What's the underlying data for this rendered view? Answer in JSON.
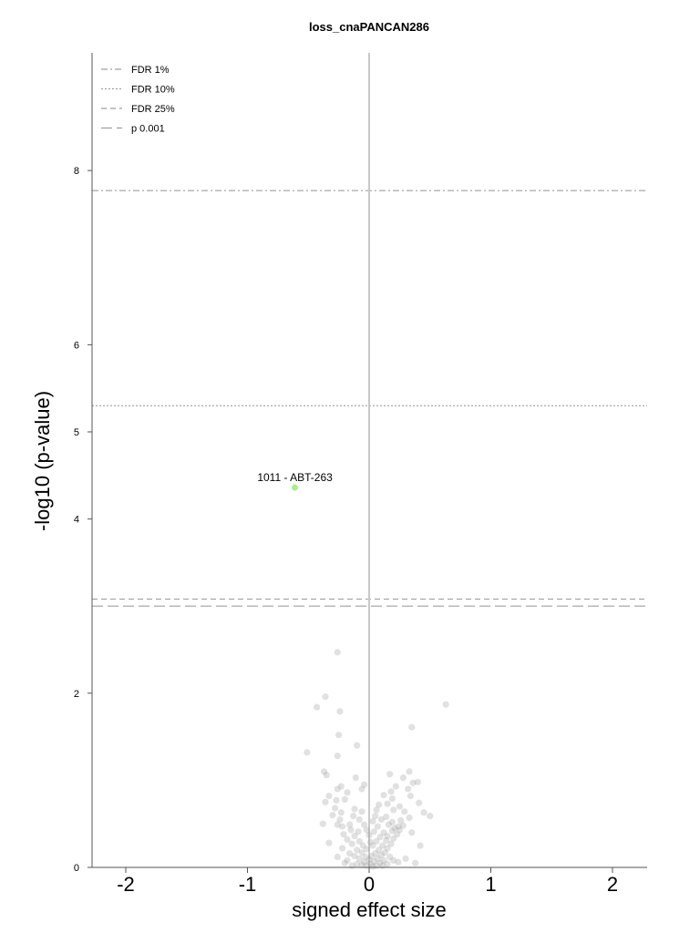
{
  "chart_data": {
    "type": "scatter",
    "title": "loss_cnaPANCAN286",
    "xlabel": "signed effect size",
    "ylabel": "-log10 (p-value)",
    "xlim": [
      -2.25,
      2.25
    ],
    "ylim": [
      0,
      9.35
    ],
    "xticks": [
      {
        "value": -2,
        "label": "-2"
      },
      {
        "value": -1,
        "label": "-1"
      },
      {
        "value": 0,
        "label": "0"
      },
      {
        "value": 1,
        "label": "1"
      },
      {
        "value": 2,
        "label": "2"
      }
    ],
    "yticks": [
      {
        "value": 0,
        "label": "0"
      },
      {
        "value": 2,
        "label": "2"
      },
      {
        "value": 4,
        "label": "4"
      },
      {
        "value": 5,
        "label": "5"
      },
      {
        "value": 6,
        "label": "6"
      },
      {
        "value": 8,
        "label": "8"
      }
    ],
    "thresholds": [
      {
        "name": "FDR 1%",
        "y": 7.77,
        "dash": "7,3,2,3"
      },
      {
        "name": "FDR 10%",
        "y": 5.3,
        "dash": "2,2"
      },
      {
        "name": "FDR 25%",
        "y": 3.08,
        "dash": "6,4"
      },
      {
        "name": "p 0.001",
        "y": 3.0,
        "dash": "12,5"
      }
    ],
    "legend_position": "top-left",
    "highlight": {
      "x": -0.61,
      "y": 4.36,
      "label": "1011 - ABT-263",
      "color": "#a6f08a"
    },
    "points": [
      [
        -0.26,
        2.47
      ],
      [
        -0.36,
        1.96
      ],
      [
        -0.43,
        1.84
      ],
      [
        -0.24,
        1.79
      ],
      [
        0.63,
        1.87
      ],
      [
        0.35,
        1.61
      ],
      [
        -0.25,
        1.52
      ],
      [
        -0.1,
        1.4
      ],
      [
        -0.51,
        1.32
      ],
      [
        -0.26,
        1.28
      ],
      [
        -0.37,
        1.1
      ],
      [
        -0.35,
        1.06
      ],
      [
        -0.11,
        1.03
      ],
      [
        0.17,
        1.07
      ],
      [
        0.33,
        1.1
      ],
      [
        0.28,
        1.03
      ],
      [
        0.36,
        0.97
      ],
      [
        0.4,
        0.98
      ],
      [
        0.22,
        0.93
      ],
      [
        0.32,
        0.9
      ],
      [
        -0.23,
        0.93
      ],
      [
        -0.26,
        0.9
      ],
      [
        -0.04,
        0.95
      ],
      [
        -0.06,
        0.9
      ],
      [
        -0.18,
        0.86
      ],
      [
        0.18,
        0.87
      ],
      [
        0.12,
        0.83
      ],
      [
        -0.33,
        0.82
      ],
      [
        0.34,
        0.82
      ],
      [
        -0.36,
        0.75
      ],
      [
        -0.27,
        0.77
      ],
      [
        -0.2,
        0.78
      ],
      [
        0.19,
        0.79
      ],
      [
        0.41,
        0.74
      ],
      [
        0.08,
        0.72
      ],
      [
        0.15,
        0.73
      ],
      [
        0.25,
        0.7
      ],
      [
        -0.28,
        0.68
      ],
      [
        -0.12,
        0.67
      ],
      [
        0.06,
        0.66
      ],
      [
        0.2,
        0.66
      ],
      [
        0.29,
        0.64
      ],
      [
        0.45,
        0.63
      ],
      [
        -0.23,
        0.63
      ],
      [
        -0.06,
        0.64
      ],
      [
        0.5,
        0.59
      ],
      [
        -0.3,
        0.6
      ],
      [
        -0.13,
        0.59
      ],
      [
        0.05,
        0.59
      ],
      [
        0.14,
        0.58
      ],
      [
        0.33,
        0.57
      ],
      [
        0.26,
        0.54
      ],
      [
        0.19,
        0.52
      ],
      [
        -0.24,
        0.55
      ],
      [
        -0.08,
        0.55
      ],
      [
        0.03,
        0.53
      ],
      [
        0.1,
        0.55
      ],
      [
        0.28,
        0.48
      ],
      [
        0.24,
        0.47
      ],
      [
        0.21,
        0.45
      ],
      [
        -0.26,
        0.49
      ],
      [
        -0.22,
        0.47
      ],
      [
        -0.16,
        0.49
      ],
      [
        -0.04,
        0.49
      ],
      [
        0.07,
        0.47
      ],
      [
        0.16,
        0.49
      ],
      [
        0.25,
        0.43
      ],
      [
        0.19,
        0.42
      ],
      [
        0.12,
        0.4
      ],
      [
        -0.15,
        0.43
      ],
      [
        -0.09,
        0.41
      ],
      [
        -0.02,
        0.43
      ],
      [
        0.04,
        0.41
      ],
      [
        0.23,
        0.38
      ],
      [
        0.15,
        0.36
      ],
      [
        -0.21,
        0.38
      ],
      [
        -0.12,
        0.36
      ],
      [
        0.0,
        0.37
      ],
      [
        0.09,
        0.35
      ],
      [
        0.2,
        0.33
      ],
      [
        0.14,
        0.31
      ],
      [
        0.06,
        0.3
      ],
      [
        -0.18,
        0.32
      ],
      [
        -0.08,
        0.3
      ],
      [
        0.01,
        0.29
      ],
      [
        0.18,
        0.27
      ],
      [
        0.11,
        0.25
      ],
      [
        0.03,
        0.25
      ],
      [
        -0.14,
        0.27
      ],
      [
        -0.05,
        0.25
      ],
      [
        0.15,
        0.22
      ],
      [
        0.08,
        0.2
      ],
      [
        -0.02,
        0.21
      ],
      [
        -0.22,
        0.22
      ],
      [
        -0.1,
        0.2
      ],
      [
        0.13,
        0.17
      ],
      [
        0.05,
        0.16
      ],
      [
        -0.06,
        0.17
      ],
      [
        -0.16,
        0.16
      ],
      [
        0.1,
        0.14
      ],
      [
        0.02,
        0.13
      ],
      [
        -0.03,
        0.12
      ],
      [
        -0.12,
        0.13
      ],
      [
        0.17,
        0.12
      ],
      [
        0.07,
        0.1
      ],
      [
        -0.08,
        0.1
      ],
      [
        0.0,
        0.09
      ],
      [
        0.12,
        0.08
      ],
      [
        0.04,
        0.07
      ],
      [
        -0.04,
        0.06
      ],
      [
        -0.18,
        0.08
      ],
      [
        0.09,
        0.05
      ],
      [
        0.01,
        0.04
      ],
      [
        -0.06,
        0.03
      ],
      [
        0.15,
        0.04
      ],
      [
        0.06,
        0.02
      ],
      [
        -0.02,
        0.02
      ],
      [
        0.11,
        0.02
      ],
      [
        -0.1,
        0.04
      ],
      [
        0.03,
        0.01
      ],
      [
        0.38,
        0.05
      ],
      [
        -0.14,
        0.02
      ],
      [
        0.24,
        0.06
      ],
      [
        -0.26,
        0.12
      ],
      [
        0.3,
        0.1
      ],
      [
        -0.2,
        0.05
      ],
      [
        0.2,
        0.08
      ],
      [
        -0.33,
        0.28
      ],
      [
        0.35,
        0.4
      ],
      [
        -0.38,
        0.5
      ],
      [
        0.42,
        0.25
      ]
    ]
  }
}
